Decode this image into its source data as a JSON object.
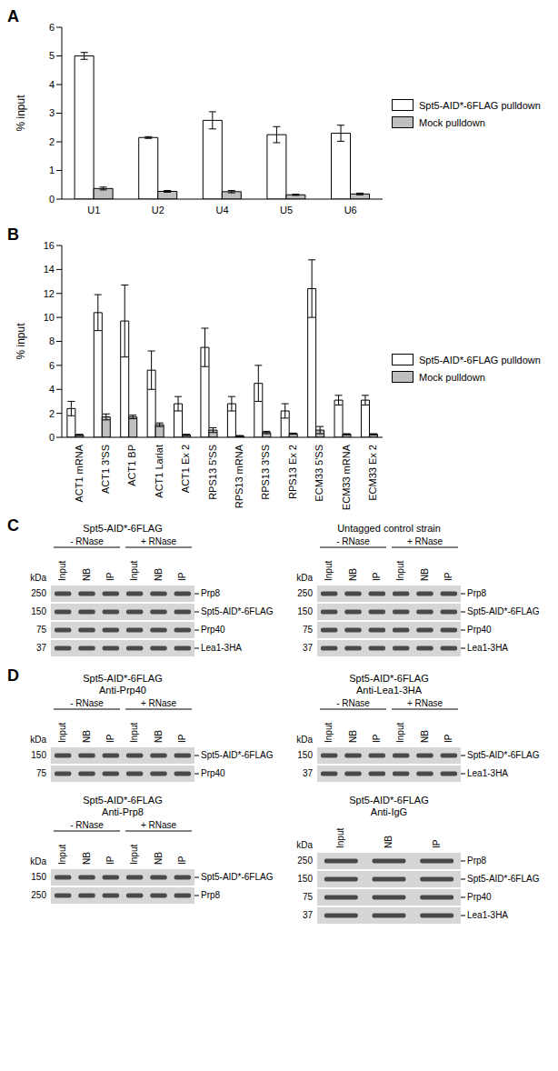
{
  "chart_data": [
    {
      "panel": "A",
      "type": "bar",
      "y_label": "% input",
      "categories": [
        "U1",
        "U2",
        "U4",
        "U5",
        "U6"
      ],
      "series": [
        {
          "name": "Spt5-AID*-6FLAG pulldown",
          "color": "#ffffff",
          "values": [
            5.0,
            2.15,
            2.75,
            2.25,
            2.3
          ],
          "errors": [
            0.12,
            0.03,
            0.3,
            0.28,
            0.28
          ]
        },
        {
          "name": "Mock pulldown",
          "color": "#bfbfbf",
          "values": [
            0.37,
            0.27,
            0.26,
            0.15,
            0.18
          ],
          "errors": [
            0.05,
            0.03,
            0.04,
            0.02,
            0.03
          ]
        }
      ],
      "ylim": [
        0,
        6
      ],
      "yticks": [
        0,
        1,
        2,
        3,
        4,
        5,
        6
      ],
      "grid": false,
      "legend": "right"
    },
    {
      "panel": "B",
      "type": "bar",
      "y_label": "% input",
      "categories": [
        "ACT1 mRNA",
        "ACT1 3'SS",
        "ACT1 BP",
        "ACT1 Lariat",
        "ACT1 Ex 2",
        "RPS13 5'SS",
        "RPS13 mRNA",
        "RPS13 3'SS",
        "RPS13 Ex 2",
        "ECM33 5'SS",
        "ECM33 mRNA",
        "ECM33 Ex 2"
      ],
      "series": [
        {
          "name": "Spt5-AID*-6FLAG pulldown",
          "color": "#ffffff",
          "values": [
            2.4,
            10.4,
            9.7,
            5.6,
            2.8,
            7.5,
            2.8,
            4.5,
            2.2,
            12.4,
            3.1,
            3.1
          ],
          "errors": [
            0.6,
            1.5,
            3.0,
            1.6,
            0.6,
            1.6,
            0.6,
            1.5,
            0.6,
            2.4,
            0.4,
            0.4
          ]
        },
        {
          "name": "Mock pulldown",
          "color": "#bfbfbf",
          "values": [
            0.2,
            1.7,
            1.7,
            1.05,
            0.2,
            0.6,
            0.1,
            0.4,
            0.3,
            0.6,
            0.25,
            0.25
          ],
          "errors": [
            0.05,
            0.25,
            0.15,
            0.15,
            0.05,
            0.2,
            0.05,
            0.1,
            0.05,
            0.3,
            0.05,
            0.05
          ]
        }
      ],
      "ylim": [
        0,
        16
      ],
      "yticks": [
        0,
        2,
        4,
        6,
        8,
        10,
        12,
        14,
        16
      ],
      "grid": false,
      "legend": "right"
    }
  ],
  "blot_panels": [
    {
      "panel": "C",
      "blots": [
        {
          "title": [
            "Spt5-AID*-6FLAG"
          ],
          "unit": "kDa",
          "groups": [
            {
              "label": "- RNase",
              "lanes": [
                "Input",
                "NB",
                "IP"
              ]
            },
            {
              "label": "+ RNase",
              "lanes": [
                "Input",
                "NB",
                "IP"
              ]
            }
          ],
          "markers": [
            250,
            150,
            75,
            37
          ],
          "labels": [
            "Prp8",
            "Spt5-AID*-6FLAG",
            "Prp40",
            "Lea1-3HA"
          ]
        },
        {
          "title": [
            "Untagged control strain"
          ],
          "unit": "kDa",
          "groups": [
            {
              "label": "- RNase",
              "lanes": [
                "Input",
                "NB",
                "IP"
              ]
            },
            {
              "label": "+ RNase",
              "lanes": [
                "Input",
                "NB",
                "IP"
              ]
            }
          ],
          "markers": [
            250,
            150,
            75,
            37
          ],
          "labels": [
            "Prp8",
            "Spt5-AID*-6FLAG",
            "Prp40",
            "Lea1-3HA"
          ]
        }
      ]
    },
    {
      "panel": "D",
      "blots": [
        {
          "title": [
            "Spt5-AID*-6FLAG",
            "Anti-Prp40"
          ],
          "unit": "kDa",
          "groups": [
            {
              "label": "- RNase",
              "lanes": [
                "Input",
                "NB",
                "IP"
              ]
            },
            {
              "label": "+ RNase",
              "lanes": [
                "Input",
                "NB",
                "IP"
              ]
            }
          ],
          "markers": [
            150,
            75
          ],
          "labels": [
            "Spt5-AID*-6FLAG",
            "Prp40"
          ]
        },
        {
          "title": [
            "Spt5-AID*-6FLAG",
            "Anti-Lea1-3HA"
          ],
          "unit": "kDa",
          "groups": [
            {
              "label": "- RNase",
              "lanes": [
                "Input",
                "NB",
                "IP"
              ]
            },
            {
              "label": "+ RNase",
              "lanes": [
                "Input",
                "NB",
                "IP"
              ]
            }
          ],
          "markers": [
            150,
            37
          ],
          "labels": [
            "Spt5-AID*-6FLAG",
            "Lea1-3HA"
          ]
        },
        {
          "title": [
            "Spt5-AID*-6FLAG",
            "Anti-Prp8"
          ],
          "unit": "kDa",
          "groups": [
            {
              "label": "- RNase",
              "lanes": [
                "Input",
                "NB",
                "IP"
              ]
            },
            {
              "label": "+ RNase",
              "lanes": [
                "Input",
                "NB",
                "IP"
              ]
            }
          ],
          "markers": [
            150,
            250
          ],
          "labels": [
            "Spt5-AID*-6FLAG",
            "Prp8"
          ]
        },
        {
          "title": [
            "Spt5-AID*-6FLAG",
            "Anti-IgG"
          ],
          "unit": "kDa",
          "lanes": [
            "Input",
            "NB",
            "IP"
          ],
          "markers": [
            250,
            150,
            75,
            37
          ],
          "labels": [
            "Prp8",
            "Spt5-AID*-6FLAG",
            "Prp40",
            "Lea1-3HA"
          ]
        }
      ]
    }
  ]
}
